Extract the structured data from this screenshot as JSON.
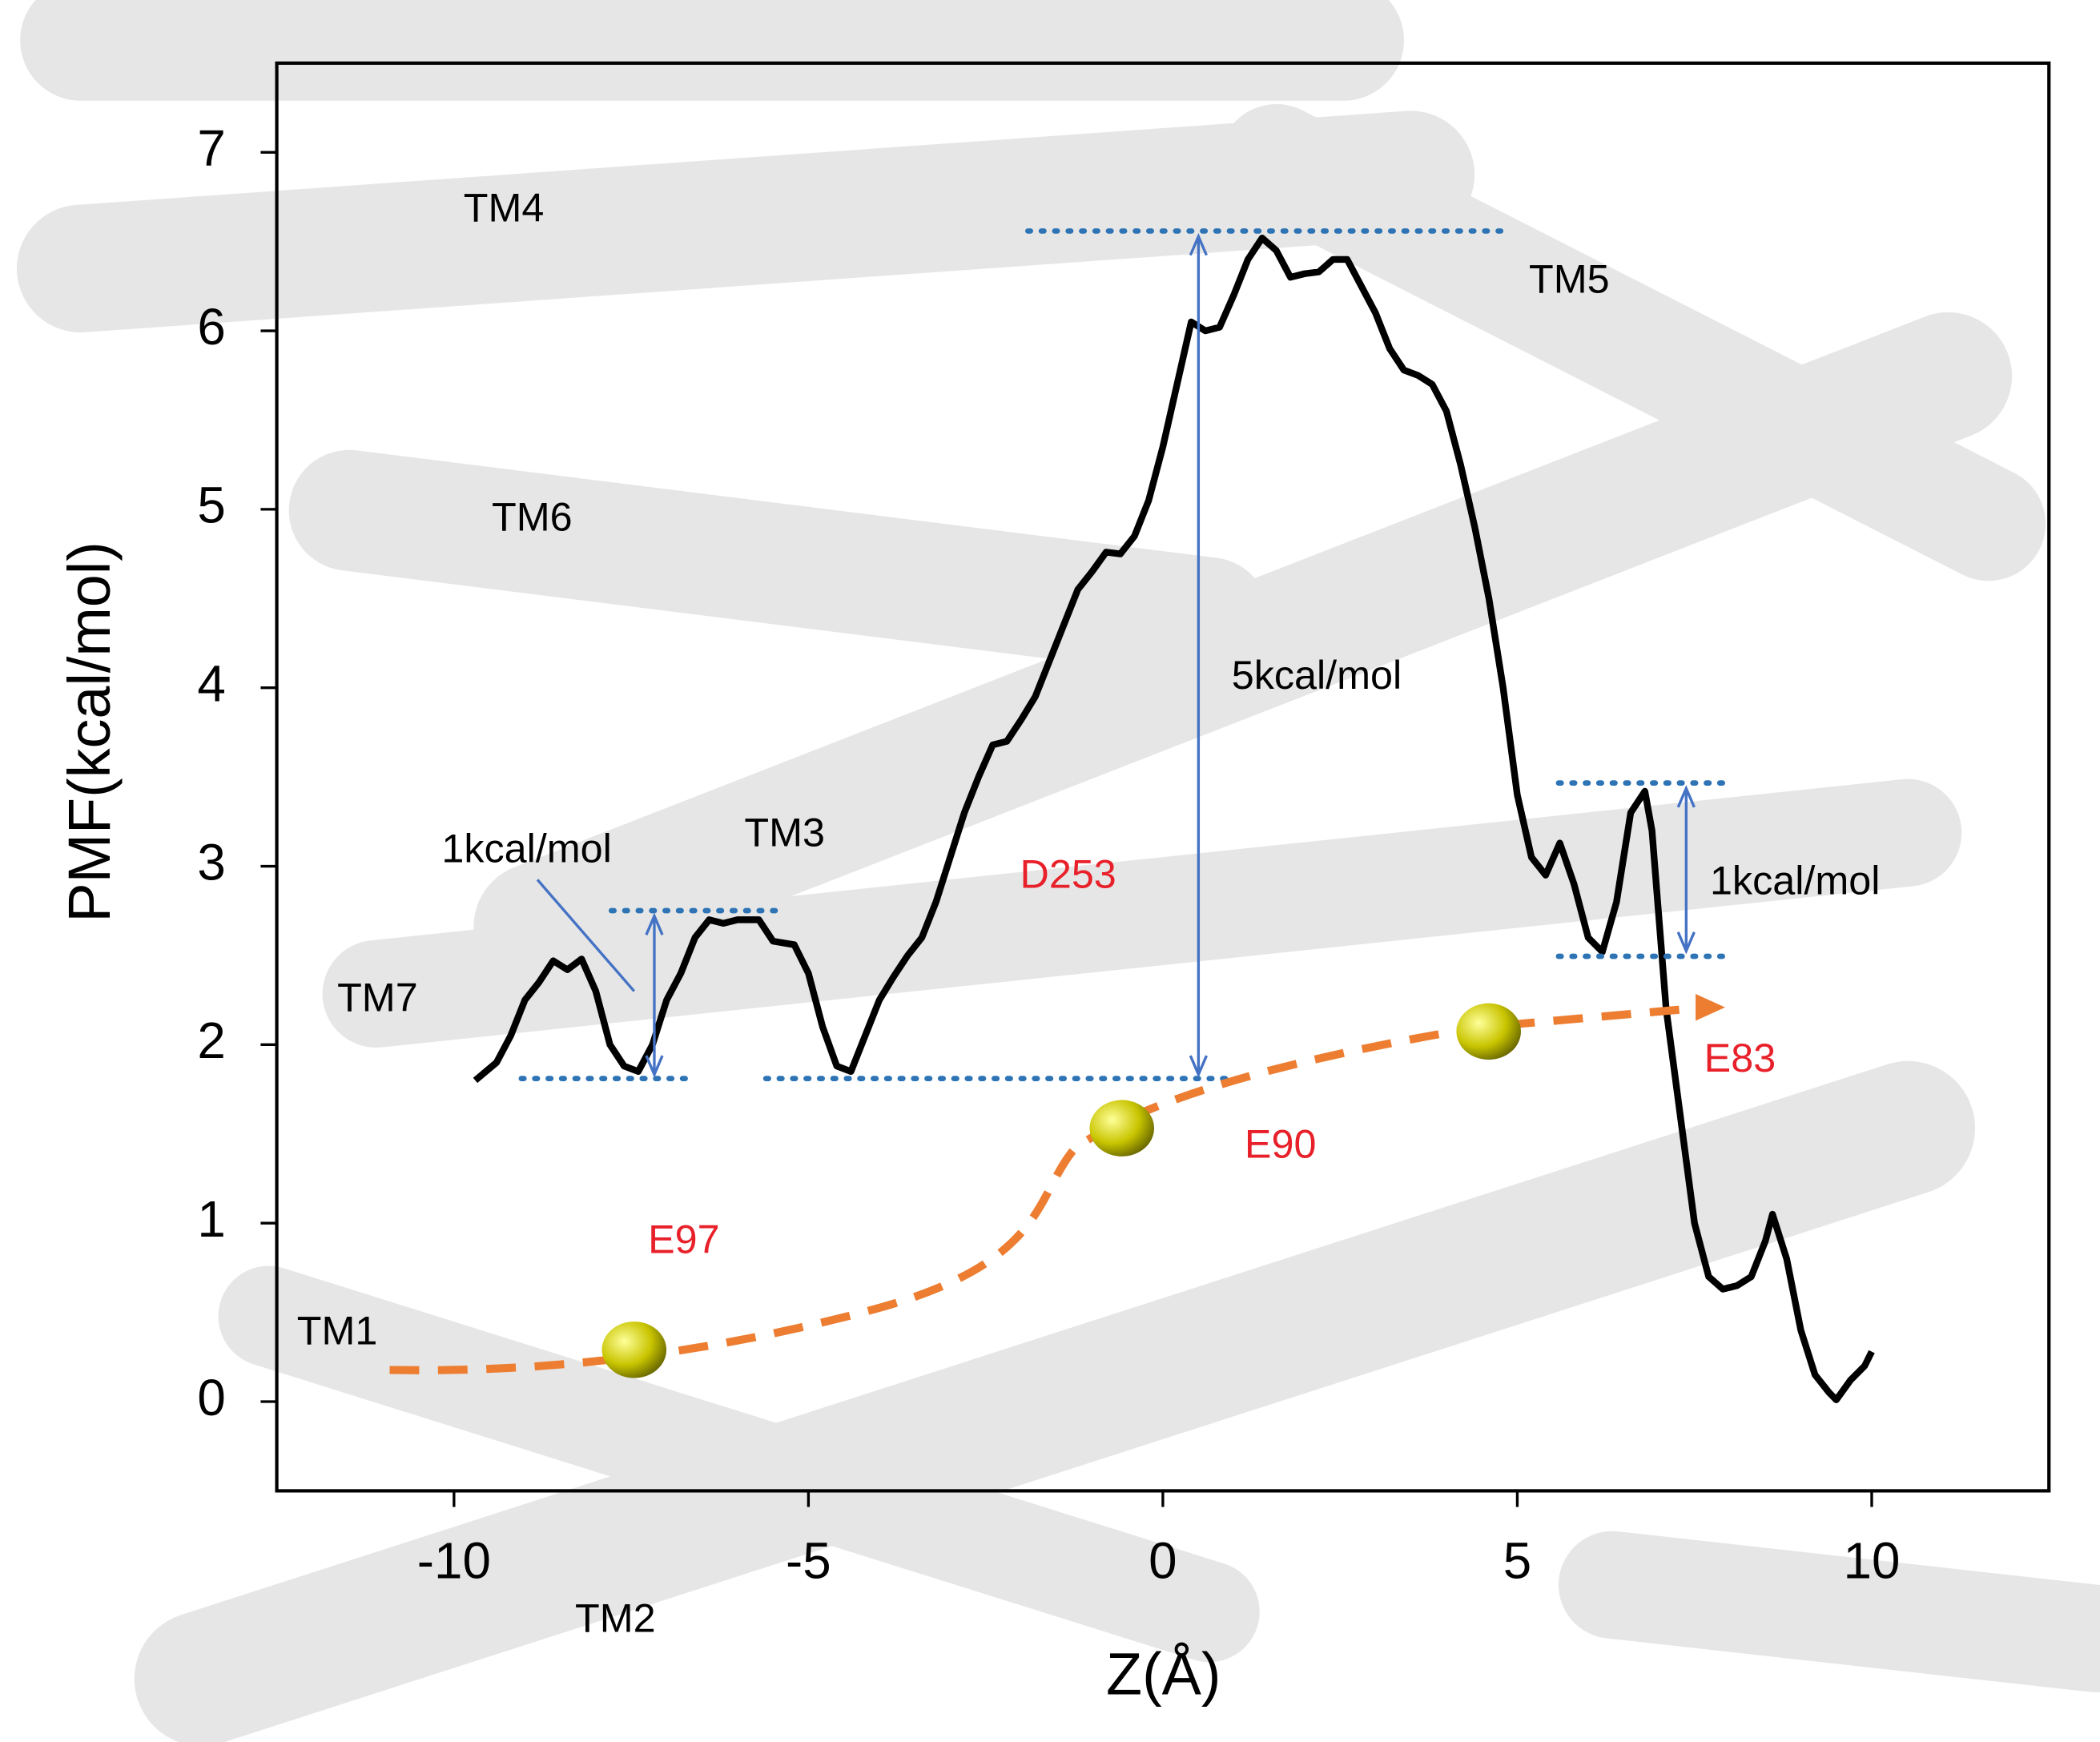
{
  "chart_data": {
    "type": "line",
    "xlabel": "Z(Å)",
    "ylabel": "PMF(kcal/mol)",
    "x": [
      -9.7,
      -9.4,
      -9.2,
      -9.0,
      -8.8,
      -8.6,
      -8.4,
      -8.2,
      -8.0,
      -7.8,
      -7.6,
      -7.4,
      -7.2,
      -7.0,
      -6.8,
      -6.6,
      -6.4,
      -6.2,
      -6.0,
      -5.7,
      -5.5,
      -5.2,
      -5.0,
      -4.8,
      -4.6,
      -4.4,
      -4.2,
      -4.0,
      -3.8,
      -3.6,
      -3.4,
      -3.2,
      -3.0,
      -2.8,
      -2.6,
      -2.4,
      -2.2,
      -2.0,
      -1.8,
      -1.6,
      -1.4,
      -1.2,
      -1.0,
      -0.8,
      -0.6,
      -0.4,
      -0.2,
      0.0,
      0.2,
      0.4,
      0.6,
      0.8,
      1.0,
      1.2,
      1.4,
      1.6,
      1.8,
      2.0,
      2.2,
      2.4,
      2.6,
      2.8,
      3.0,
      3.2,
      3.4,
      3.6,
      3.8,
      4.0,
      4.2,
      4.4,
      4.6,
      4.8,
      5.0,
      5.2,
      5.4,
      5.6,
      5.8,
      6.0,
      6.2,
      6.4,
      6.6,
      6.8,
      6.9,
      7.1,
      7.3,
      7.5,
      7.7,
      7.9,
      8.1,
      8.3,
      8.5,
      8.6,
      8.8,
      9.0,
      9.2,
      9.4,
      9.5,
      9.7,
      9.9,
      10.0
    ],
    "series": [
      {
        "name": "PMF",
        "color": "#000000",
        "values": [
          1.8,
          1.9,
          2.05,
          2.25,
          2.35,
          2.47,
          2.42,
          2.48,
          2.3,
          2.0,
          1.88,
          1.85,
          2.0,
          2.25,
          2.4,
          2.6,
          2.7,
          2.68,
          2.7,
          2.7,
          2.58,
          2.56,
          2.4,
          2.1,
          1.88,
          1.85,
          2.05,
          2.25,
          2.38,
          2.5,
          2.6,
          2.8,
          3.05,
          3.3,
          3.5,
          3.68,
          3.7,
          3.82,
          3.95,
          4.15,
          4.35,
          4.55,
          4.65,
          4.76,
          4.75,
          4.85,
          5.05,
          5.35,
          5.7,
          6.05,
          6.0,
          6.02,
          6.2,
          6.4,
          6.52,
          6.45,
          6.3,
          6.32,
          6.33,
          6.4,
          6.4,
          6.25,
          6.1,
          5.9,
          5.78,
          5.75,
          5.7,
          5.55,
          5.25,
          4.9,
          4.5,
          4.0,
          3.4,
          3.05,
          2.95,
          3.13,
          2.9,
          2.6,
          2.52,
          2.8,
          3.3,
          3.42,
          3.2,
          2.2,
          1.6,
          1.0,
          0.7,
          0.63,
          0.65,
          0.7,
          0.9,
          1.05,
          0.8,
          0.4,
          0.15,
          0.05,
          0.01,
          0.12,
          0.2,
          0.28
        ]
      }
    ],
    "xlim": [
      -12.5,
      12.5
    ],
    "xticks": [
      -10,
      -5,
      0,
      5,
      10
    ],
    "ylim": [
      -0.5,
      7.5
    ],
    "yticks": [
      0,
      1,
      2,
      3,
      4,
      5,
      6,
      7
    ],
    "annotations": [
      "TM4",
      "TM6",
      "TM5",
      "TM3",
      "TM7",
      "TM1",
      "TM2",
      "1kcal/mol",
      "5kcal/mol",
      "1kcal/mol"
    ],
    "residues": [
      "D253",
      "E83",
      "E90",
      "E97"
    ]
  }
}
